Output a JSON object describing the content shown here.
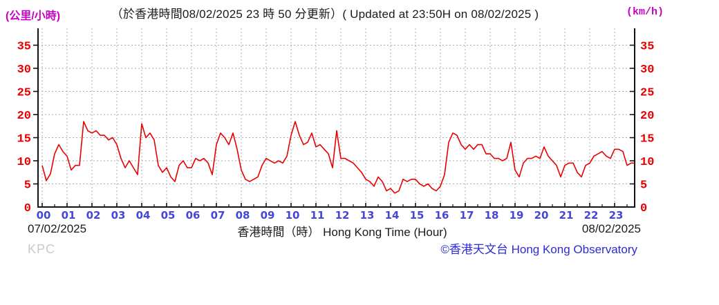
{
  "header": {
    "unit_left": "(公里/小時)",
    "title": "（於香港時間08/02/2025 23 時 50 分更新）( Updated at 23:50H on 08/02/2025 )",
    "unit_right": "(km/h)"
  },
  "footer": {
    "date_left": "07/02/2025",
    "axis_title": "香港時間（時） Hong Kong Time (Hour)",
    "date_right": "08/02/2025",
    "station_code": "KPC",
    "copyright": "©香港天文台 Hong Kong Observatory"
  },
  "colors": {
    "line": "#e80000",
    "y_tick_labels": "#e80000",
    "x_tick_labels": "#4545d6",
    "unit_labels": "#c400c4",
    "copyright": "#2b2bd4",
    "station_code": "#c9c9c9",
    "grid": "#aaaaaa",
    "axis": "#111111"
  },
  "chart_data": {
    "type": "line",
    "title": "（於香港時間08/02/2025 23 時 50 分更新）( Updated at 23:50H on 08/02/2025 )",
    "xlabel": "香港時間（時） Hong Kong Time (Hour)",
    "ylabel_left": "(公里/小時)",
    "ylabel_right": "(km/h)",
    "date_start": "07/02/2025",
    "date_end": "08/02/2025",
    "grid": "dotted",
    "legend": "none",
    "ylim": [
      0,
      38.7
    ],
    "xlim_hours": [
      0,
      23.83
    ],
    "y_ticks": [
      0,
      5,
      10,
      15,
      20,
      25,
      30,
      35
    ],
    "x_tick_labels": [
      "00",
      "01",
      "02",
      "03",
      "04",
      "05",
      "06",
      "07",
      "08",
      "09",
      "10",
      "11",
      "12",
      "13",
      "14",
      "15",
      "16",
      "17",
      "18",
      "19",
      "20",
      "21",
      "22",
      "23"
    ],
    "x_start_hour": 0,
    "x_interval_minutes": 10,
    "values": [
      9,
      5.7,
      7.2,
      11.5,
      13.5,
      12,
      11,
      8,
      9,
      9,
      18.5,
      16.5,
      16,
      16.5,
      15.5,
      15.5,
      14.5,
      15,
      13.5,
      10.5,
      8.5,
      10,
      8.5,
      7,
      18,
      15,
      16,
      14.5,
      9,
      7.5,
      8.5,
      6.5,
      5.5,
      9,
      10,
      8.5,
      8.5,
      10.5,
      10,
      10.5,
      9.5,
      7,
      13.5,
      16,
      15,
      13.5,
      16,
      12.5,
      8,
      6,
      5.5,
      6,
      6.5,
      9,
      10.5,
      10,
      9.5,
      10,
      9.5,
      11,
      15.5,
      18.5,
      15.5,
      13.5,
      14,
      16,
      13,
      13.5,
      12.5,
      11.5,
      8.5,
      16.5,
      10.5,
      10.5,
      10,
      9.5,
      8.5,
      7.5,
      6,
      5.5,
      4.5,
      6.5,
      5.5,
      3.5,
      4,
      3,
      3.5,
      6,
      5.5,
      6,
      6,
      5,
      4.5,
      5,
      4,
      3.5,
      4.5,
      7,
      14,
      16,
      15.5,
      13.5,
      12.5,
      13.5,
      12.5,
      13.5,
      13.5,
      11.5,
      11.5,
      10.5,
      10.5,
      10,
      10.5,
      14,
      8,
      6.5,
      9.5,
      10.5,
      10.5,
      11,
      10.5,
      13,
      11,
      10,
      9,
      6.5,
      9,
      9.5,
      9.5,
      7.5,
      6.5,
      9,
      9.5,
      11,
      11.5,
      12,
      11,
      10.5,
      12.5,
      12.5,
      12,
      9,
      9.5,
      9.5
    ]
  }
}
